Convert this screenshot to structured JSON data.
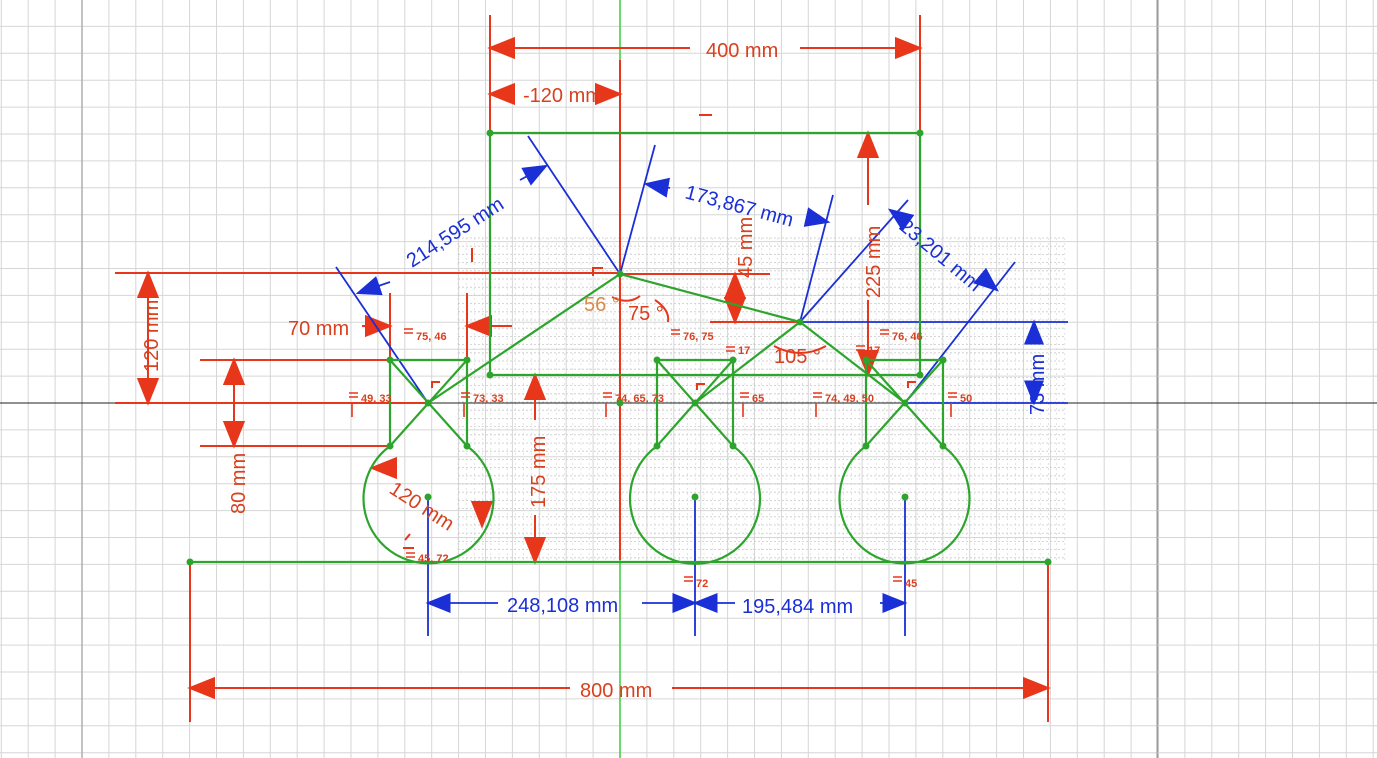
{
  "colors": {
    "geometry": "#2da52d",
    "driving_dim": "#e8361b",
    "driving_text": "#d8401e",
    "reference_dim": "#1a2fd6",
    "angle_text": "#d98a4a",
    "grid_major": "#bdbdbd",
    "grid_minor": "#dcdcdc",
    "axis_x": "#222222",
    "axis_y": "#3fd23f"
  },
  "dimensions": {
    "d_400": "400 mm",
    "d_neg120": "-120 mm",
    "d_214": "214,595 mm",
    "d_173": "173,867 mm",
    "d_45": "45 mm",
    "d_225": "225 mm",
    "d_23": "23,201 mm",
    "d_120v": "120 mm",
    "d_70": "70 mm",
    "d_73": "73 mm",
    "d_80": "80 mm",
    "d_175": "175 mm",
    "d_120r": "120 mm",
    "d_248": "248,108 mm",
    "d_195": "195,484 mm",
    "d_800": "800 mm"
  },
  "angles": {
    "a56": "56 °",
    "a75": "75 °",
    "a105": "105 °"
  },
  "constraint_tags": {
    "t1": "75, 46",
    "t2": "76, 75",
    "t3": "17",
    "t4": "17",
    "t5": "76, 46",
    "t6": "49, 33",
    "t7": "73, 33",
    "t8": "74, 65, 73",
    "t9": "65",
    "t10": "74, 49, 50",
    "t11": "50",
    "t12": "45, 72",
    "t13": "72",
    "t14": "45"
  }
}
